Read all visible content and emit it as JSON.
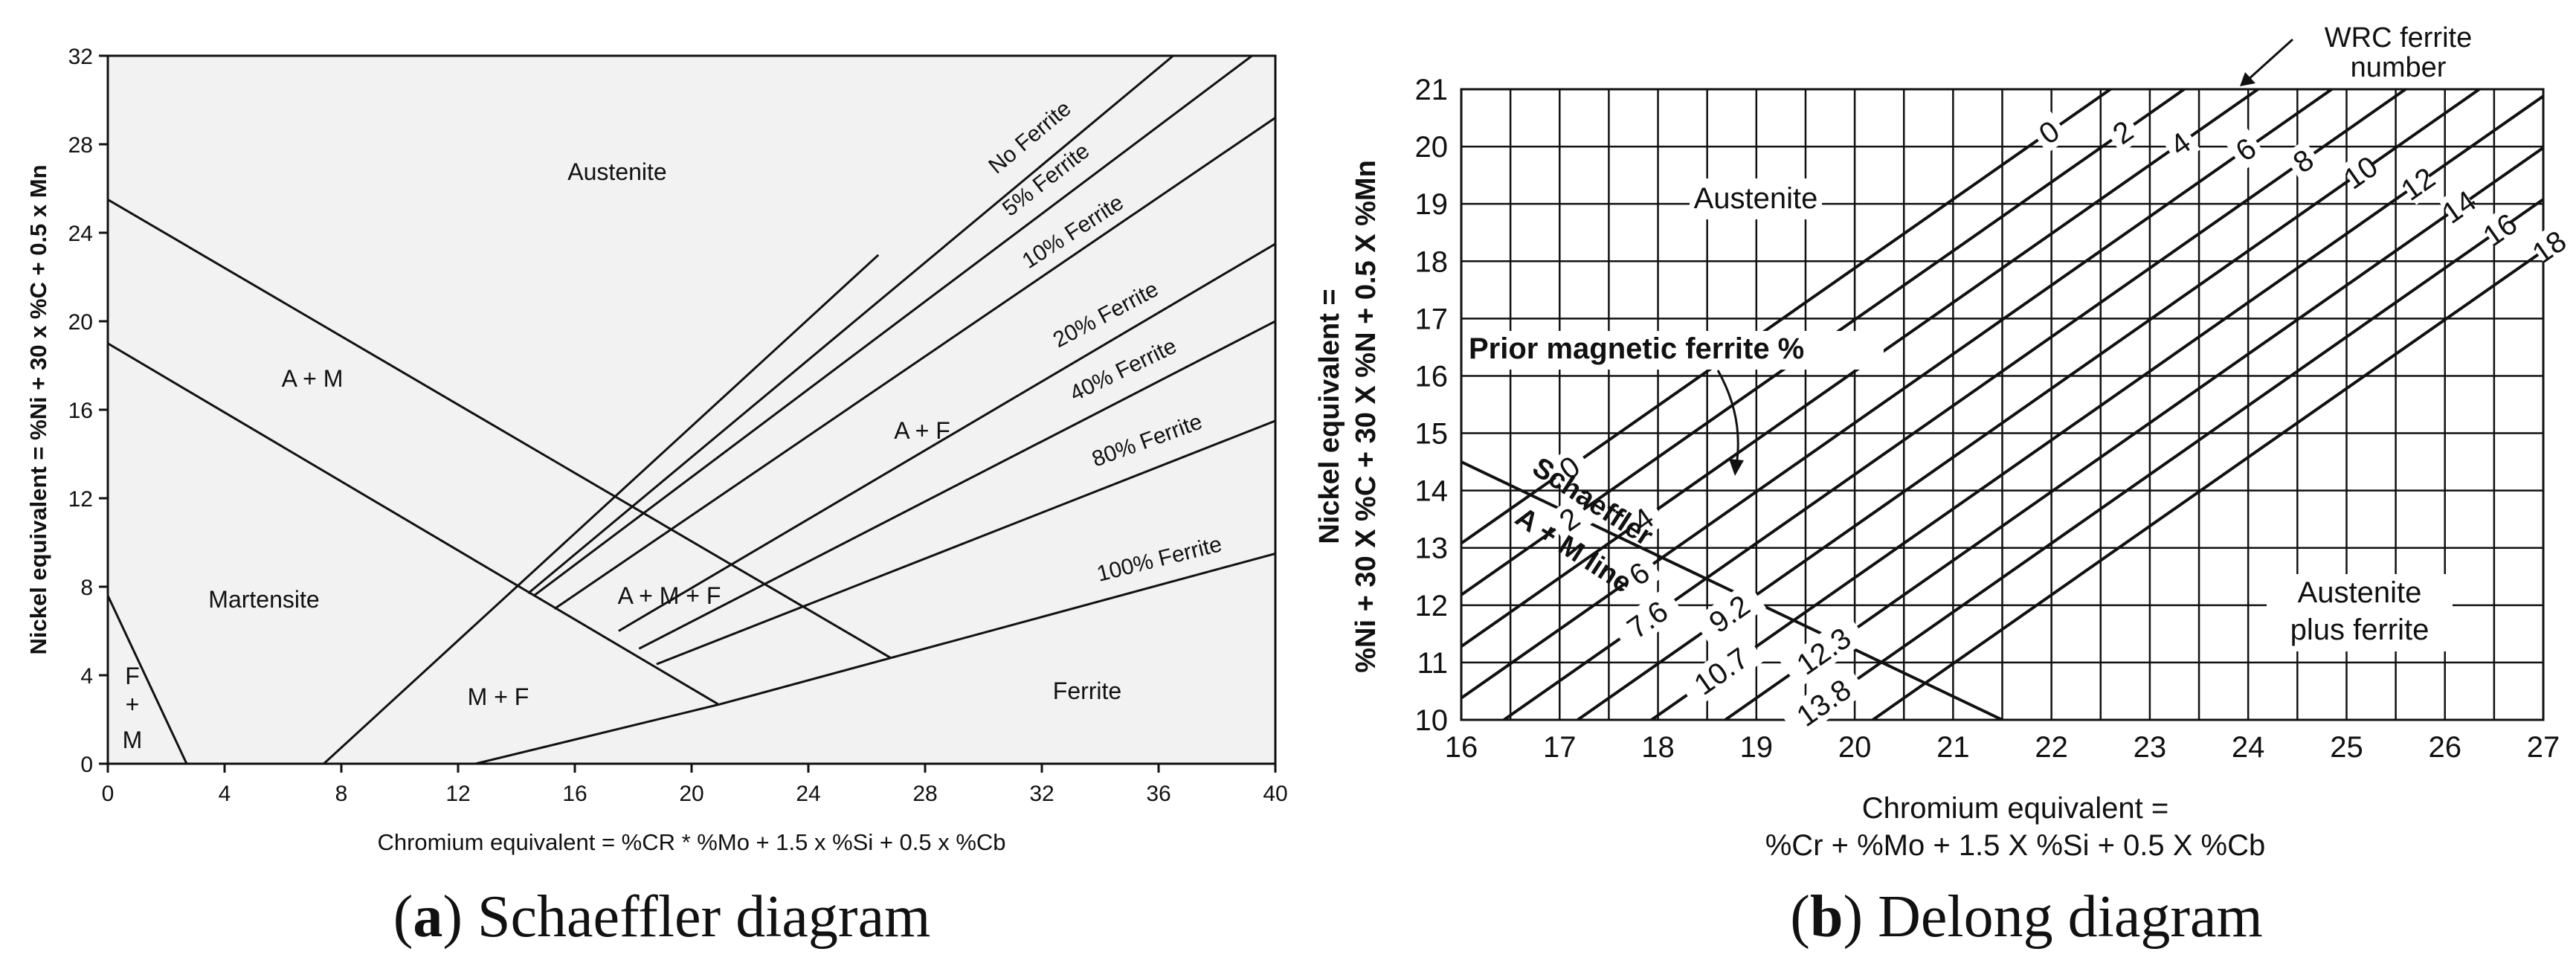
{
  "left": {
    "caption_letter": "a",
    "caption_title": " Schaeffler diagram",
    "y_axis_label": "Nickel equivalent = %Ni + 30 x %C + 0.5 x Mn",
    "x_axis_label": "Chromium equivalent = %CR * %Mo + 1.5 x %Si + 0.5 x %Cb",
    "x_ticks": [
      "0",
      "4",
      "8",
      "12",
      "16",
      "20",
      "24",
      "28",
      "32",
      "36",
      "40"
    ],
    "y_ticks": [
      "0",
      "4",
      "8",
      "12",
      "16",
      "20",
      "24",
      "28",
      "32"
    ],
    "regions": {
      "austenite": "Austenite",
      "a_plus_m": "A + M",
      "martensite": "Martensite",
      "a_plus_f": "A + F",
      "a_plus_m_plus_f": "A + M + F",
      "m_plus_f": "M + F",
      "ferrite": "Ferrite",
      "f_plus_m_f": "F",
      "f_plus_m_plus": "+",
      "f_plus_m_m": "M"
    },
    "lines": {
      "no_ferrite": "No Ferrite",
      "ferrite_5": "5% Ferrite",
      "ferrite_10": "10% Ferrite",
      "ferrite_20": "20% Ferrite",
      "ferrite_40": "40% Ferrite",
      "ferrite_80": "80% Ferrite",
      "ferrite_100": "100% Ferrite"
    }
  },
  "right": {
    "caption_letter": "b",
    "caption_title": " Delong diagram",
    "y_axis_label_line1": "Nickel equivalent =",
    "y_axis_label_line2": "%Ni + 30 X %C + 30 X %N + 0.5 X %Mn",
    "x_axis_label_line1": "Chromium equivalent =",
    "x_axis_label_line2": "%Cr + %Mo + 1.5 X %Si + 0.5 X %Cb",
    "x_ticks": [
      "16",
      "17",
      "18",
      "19",
      "20",
      "21",
      "22",
      "23",
      "24",
      "25",
      "26",
      "27"
    ],
    "y_ticks": [
      "10",
      "11",
      "12",
      "13",
      "14",
      "15",
      "16",
      "17",
      "18",
      "19",
      "20",
      "21"
    ],
    "wrc_label_line1": "WRC ferrite",
    "wrc_label_line2": "number",
    "austenite": "Austenite",
    "prior_magnetic": "Prior magnetic ferrite %",
    "schaeffler_line": "Schaeffler",
    "am_line": "A + M line",
    "austenite_plus_ferrite_line1": "Austenite",
    "austenite_plus_ferrite_line2": "plus ferrite",
    "wrc_numbers": [
      "0",
      "2",
      "4",
      "6",
      "8",
      "10",
      "12",
      "14",
      "16",
      "18"
    ],
    "magnetic_numbers": [
      "0",
      "2",
      "4",
      "6",
      "7.6",
      "9.2",
      "10.7",
      "12.3",
      "13.8"
    ]
  },
  "chart_data": [
    {
      "type": "line",
      "title": "Schaeffler diagram",
      "xlabel": "Chromium equivalent = %CR * %Mo + 1.5 x %Si + 0.5 x %Cb",
      "ylabel": "Nickel equivalent = %Ni + 30 x %C + 0.5 x Mn",
      "xlim": [
        0,
        40
      ],
      "ylim": [
        0,
        32
      ],
      "series": [
        {
          "name": "Austenite / A+M boundary",
          "x": [
            0,
            26.8
          ],
          "y": [
            25.5,
            4.8
          ]
        },
        {
          "name": "A+M / Martensite boundary",
          "x": [
            0,
            20.9
          ],
          "y": [
            19,
            2.7
          ]
        },
        {
          "name": "F+M boundary",
          "x": [
            0,
            2.7
          ],
          "y": [
            7.6,
            0
          ]
        },
        {
          "name": "Martensite / M+F boundary",
          "x": [
            7.4,
            26.4
          ],
          "y": [
            0,
            23
          ]
        },
        {
          "name": "No Ferrite",
          "x": [
            14.4,
            36.5
          ],
          "y": [
            7.7,
            32
          ]
        },
        {
          "name": "5% Ferrite",
          "x": [
            14.6,
            39.2
          ],
          "y": [
            7.6,
            32
          ]
        },
        {
          "name": "10% Ferrite",
          "x": [
            15.3,
            40
          ],
          "y": [
            7.0,
            29.2
          ]
        },
        {
          "name": "20% Ferrite",
          "x": [
            17.5,
            40
          ],
          "y": [
            6.0,
            23.5
          ]
        },
        {
          "name": "40% Ferrite",
          "x": [
            18.2,
            40
          ],
          "y": [
            5.2,
            20
          ]
        },
        {
          "name": "80% Ferrite",
          "x": [
            18.8,
            40
          ],
          "y": [
            4.5,
            15.5
          ]
        },
        {
          "name": "100% Ferrite",
          "x": [
            12.6,
            21,
            40
          ],
          "y": [
            0,
            2.7,
            9.5
          ]
        }
      ]
    },
    {
      "type": "line",
      "title": "Delong diagram",
      "xlabel": "Chromium equivalent = %Cr + %Mo + 1.5 X %Si + 0.5 X %Cb",
      "ylabel": "Nickel equivalent = %Ni + 30 X %C + 30 X %N + 0.5 X %Mn",
      "xlim": [
        16,
        27
      ],
      "ylim": [
        10,
        21
      ],
      "iso_ferrite_lines": {
        "slope": 1.2,
        "wrc_numbers": [
          0,
          2,
          4,
          6,
          8,
          10,
          12,
          14,
          16,
          18
        ],
        "x_at_y21": [
          22.6,
          23.35,
          24.1,
          24.85,
          25.6,
          26.35,
          27.1,
          27.85,
          28.6,
          29.35
        ],
        "magnetic_percent": [
          0,
          2,
          4,
          6,
          7.6,
          9.2,
          10.7,
          12.3,
          13.8
        ]
      },
      "series": [
        {
          "name": "Schaeffler A + M line",
          "x": [
            16,
            21.5
          ],
          "y": [
            14.5,
            10
          ]
        }
      ]
    }
  ]
}
